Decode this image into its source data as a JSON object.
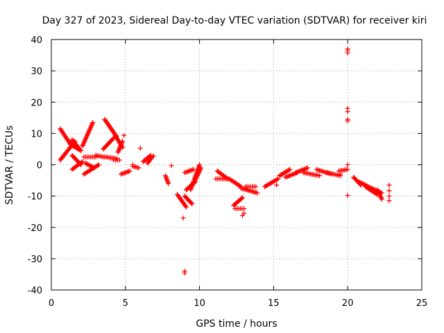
{
  "chart_data": {
    "type": "scatter",
    "title": "Day 327 of 2023, Sidereal Day-to-day VTEC variation (SDTVAR) for receiver kiri",
    "xlabel": "GPS time / hours",
    "ylabel": "SDTVAR / TECUs",
    "xlim": [
      0,
      25
    ],
    "ylim": [
      -40,
      40
    ],
    "xticks": [
      0,
      5,
      10,
      15,
      20,
      25
    ],
    "yticks": [
      -40,
      -30,
      -20,
      -10,
      0,
      10,
      20,
      30,
      40
    ],
    "grid": true,
    "marker": "plus",
    "color": "#ff0000",
    "series": [
      {
        "name": "SDTVAR",
        "segments": [
          {
            "x0": 0.6,
            "y0": 11.5,
            "x1": 1.3,
            "y1": 6.5
          },
          {
            "x0": 0.6,
            "y0": 1.5,
            "x1": 1.6,
            "y1": 7.5
          },
          {
            "x0": 1.3,
            "y0": 6.5,
            "x1": 2.0,
            "y1": 4.5
          },
          {
            "x0": 1.4,
            "y0": 8.0,
            "x1": 1.9,
            "y1": 5.0
          },
          {
            "x0": 1.4,
            "y0": 3.0,
            "x1": 2.0,
            "y1": 0.0
          },
          {
            "x0": 1.4,
            "y0": -1.5,
            "x1": 2.1,
            "y1": 1.0
          },
          {
            "x0": 2.1,
            "y0": 6.0,
            "x1": 2.8,
            "y1": 13.5
          },
          {
            "x0": 2.2,
            "y0": 2.5,
            "x1": 3.0,
            "y1": 2.5
          },
          {
            "x0": 2.2,
            "y0": -3.0,
            "x1": 3.2,
            "y1": 0.0
          },
          {
            "x0": 2.3,
            "y0": 0.5,
            "x1": 2.9,
            "y1": -1.0
          },
          {
            "x0": 3.0,
            "y0": 3.0,
            "x1": 3.5,
            "y1": 2.5
          },
          {
            "x0": 3.5,
            "y0": 5.0,
            "x1": 4.2,
            "y1": 8.5
          },
          {
            "x0": 3.6,
            "y0": 14.5,
            "x1": 4.4,
            "y1": 9.0
          },
          {
            "x0": 3.6,
            "y0": 2.5,
            "x1": 4.4,
            "y1": 2.0
          },
          {
            "x0": 4.3,
            "y0": 9.5,
            "x1": 4.8,
            "y1": 5.5
          },
          {
            "x0": 4.2,
            "y0": 1.5,
            "x1": 4.6,
            "y1": 1.5
          },
          {
            "x0": 4.5,
            "y0": 4.0,
            "x1": 4.8,
            "y1": 7.5
          },
          {
            "x0": 4.7,
            "y0": -3.0,
            "x1": 5.3,
            "y1": -2.0
          },
          {
            "x0": 5.5,
            "y0": -0.5,
            "x1": 5.9,
            "y1": -1.0
          },
          {
            "x0": 6.2,
            "y0": 1.0,
            "x1": 6.7,
            "y1": 3.0
          },
          {
            "x0": 6.5,
            "y0": 0.5,
            "x1": 6.8,
            "y1": 2.5
          },
          {
            "x0": 7.7,
            "y0": -3.5,
            "x1": 7.9,
            "y1": -6.0
          },
          {
            "x0": 8.5,
            "y0": -9.5,
            "x1": 9.1,
            "y1": -13.5
          },
          {
            "x0": 9.0,
            "y0": -10.0,
            "x1": 9.5,
            "y1": -12.5
          },
          {
            "x0": 9.1,
            "y0": -8.0,
            "x1": 9.7,
            "y1": -5.5
          },
          {
            "x0": 9.0,
            "y0": -2.5,
            "x1": 9.6,
            "y1": -1.5
          },
          {
            "x0": 9.4,
            "y0": -8.0,
            "x1": 10.0,
            "y1": 0.0
          },
          {
            "x0": 9.6,
            "y0": -6.0,
            "x1": 10.1,
            "y1": -1.0
          },
          {
            "x0": 11.2,
            "y0": -2.0,
            "x1": 11.9,
            "y1": -4.5
          },
          {
            "x0": 11.1,
            "y0": -4.5,
            "x1": 12.0,
            "y1": -4.5
          },
          {
            "x0": 12.0,
            "y0": -4.5,
            "x1": 12.8,
            "y1": -7.0
          },
          {
            "x0": 12.3,
            "y0": -13.0,
            "x1": 12.9,
            "y1": -10.5
          },
          {
            "x0": 12.4,
            "y0": -14.0,
            "x1": 13.0,
            "y1": -14.0
          },
          {
            "x0": 12.8,
            "y0": -7.5,
            "x1": 13.9,
            "y1": -9.0
          },
          {
            "x0": 13.1,
            "y0": -7.0,
            "x1": 13.8,
            "y1": -7.0
          },
          {
            "x0": 14.4,
            "y0": -7.0,
            "x1": 15.3,
            "y1": -4.5
          },
          {
            "x0": 15.4,
            "y0": -3.5,
            "x1": 16.1,
            "y1": -1.5
          },
          {
            "x0": 15.8,
            "y0": -4.0,
            "x1": 16.6,
            "y1": -2.5
          },
          {
            "x0": 16.5,
            "y0": -2.5,
            "x1": 17.3,
            "y1": -1.0
          },
          {
            "x0": 17.0,
            "y0": -2.5,
            "x1": 18.1,
            "y1": -3.5
          },
          {
            "x0": 17.9,
            "y0": -1.5,
            "x1": 18.9,
            "y1": -3.0
          },
          {
            "x0": 18.6,
            "y0": -2.5,
            "x1": 19.5,
            "y1": -3.5
          },
          {
            "x0": 19.4,
            "y0": -2.0,
            "x1": 20.0,
            "y1": -1.5
          },
          {
            "x0": 20.4,
            "y0": -4.0,
            "x1": 20.9,
            "y1": -6.5
          },
          {
            "x0": 20.8,
            "y0": -5.5,
            "x1": 21.6,
            "y1": -7.5
          },
          {
            "x0": 21.2,
            "y0": -7.0,
            "x1": 22.0,
            "y1": -9.5
          },
          {
            "x0": 21.6,
            "y0": -7.5,
            "x1": 22.3,
            "y1": -9.0
          },
          {
            "x0": 22.0,
            "y0": -8.0,
            "x1": 22.3,
            "y1": -11.0
          }
        ],
        "points": [
          [
            1.3,
            7.0
          ],
          [
            4.9,
            9.4
          ],
          [
            6.0,
            5.3
          ],
          [
            8.1,
            -0.3
          ],
          [
            8.9,
            -17.0
          ],
          [
            9.0,
            -34.0
          ],
          [
            9.0,
            -34.6
          ],
          [
            12.9,
            -16.2
          ],
          [
            13.0,
            -15.5
          ],
          [
            15.2,
            -6.5
          ],
          [
            20.0,
            37.0
          ],
          [
            20.0,
            36.4
          ],
          [
            20.0,
            35.7
          ],
          [
            20.0,
            18.0
          ],
          [
            20.0,
            17.0
          ],
          [
            20.0,
            14.5
          ],
          [
            20.0,
            14.0
          ],
          [
            20.0,
            0.0
          ],
          [
            20.0,
            -9.8
          ],
          [
            22.8,
            -6.5
          ],
          [
            22.8,
            -8.3
          ],
          [
            22.8,
            -10.0
          ],
          [
            22.8,
            -11.5
          ],
          [
            5.5,
            0.0
          ],
          [
            6.9,
            2.8
          ],
          [
            19.5,
            -3.0
          ]
        ]
      }
    ]
  }
}
